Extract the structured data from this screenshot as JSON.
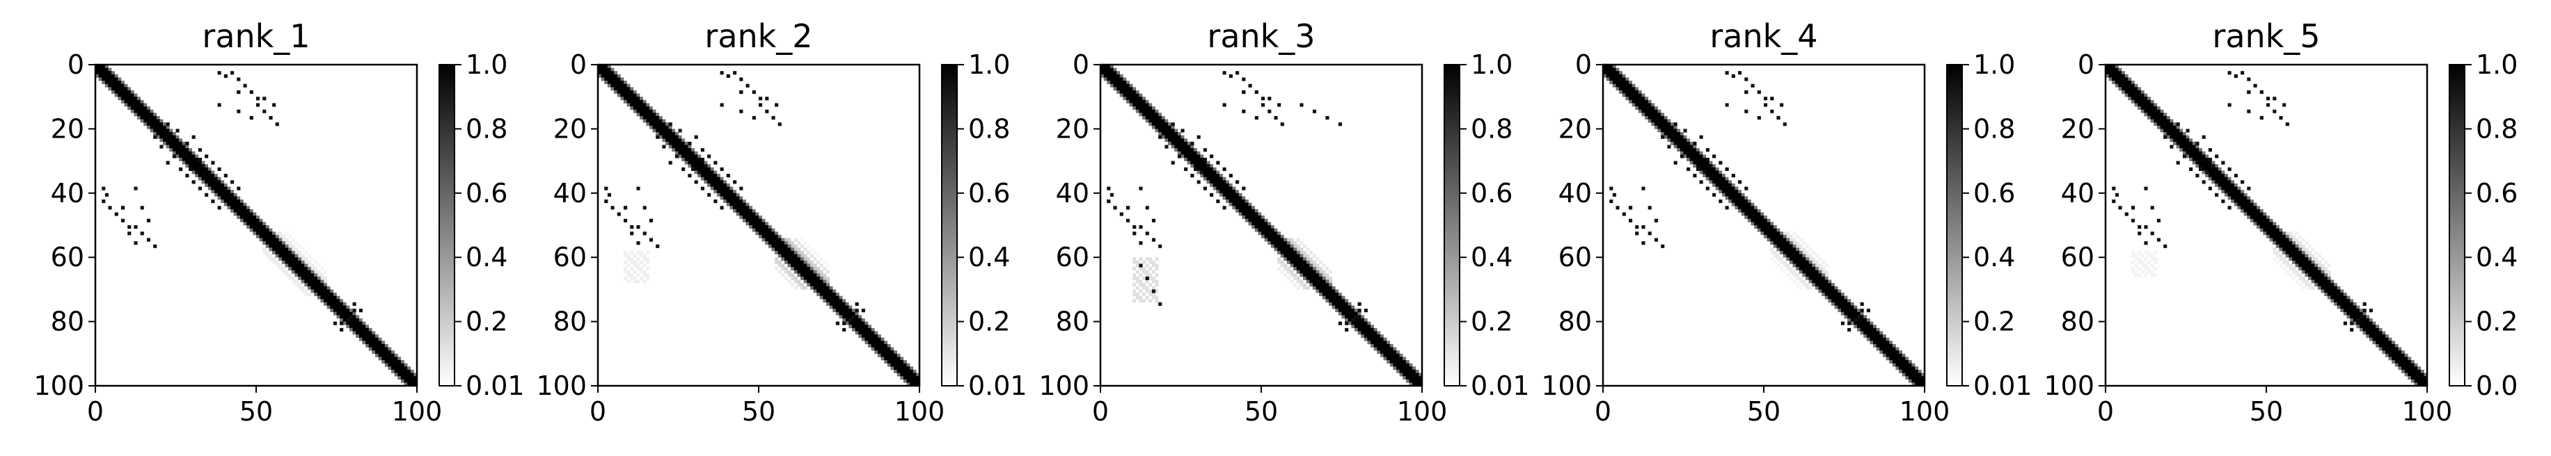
{
  "chart_data": [
    {
      "type": "heatmap",
      "title": "rank_1",
      "x_ticks": [
        "0",
        "50",
        "100"
      ],
      "y_ticks": [
        "0",
        "20",
        "40",
        "60",
        "80",
        "100"
      ],
      "xlim": [
        0,
        100
      ],
      "ylim": [
        100,
        0
      ],
      "colorbar": {
        "ticks": [
          "1.0",
          "0.8",
          "0.6",
          "0.4",
          "0.2",
          "0.01"
        ],
        "range": [
          0.01,
          1.0
        ],
        "colormap": "gray_r"
      },
      "n": 100,
      "diagonal_halfwidth": 3,
      "contacts": [
        [
          2,
          38
        ],
        [
          3,
          40
        ],
        [
          8,
          44
        ],
        [
          10,
          50
        ],
        [
          12,
          55
        ],
        [
          14,
          44
        ],
        [
          16,
          48
        ],
        [
          12,
          38
        ],
        [
          18,
          22
        ],
        [
          20,
          25
        ],
        [
          22,
          30
        ],
        [
          24,
          28
        ],
        [
          26,
          32
        ],
        [
          28,
          34
        ],
        [
          30,
          36
        ],
        [
          32,
          38
        ],
        [
          34,
          40
        ],
        [
          36,
          42
        ],
        [
          38,
          44
        ],
        [
          33,
          31
        ],
        [
          32,
          29
        ],
        [
          42,
          2
        ],
        [
          44,
          4
        ],
        [
          46,
          6
        ],
        [
          48,
          8
        ],
        [
          50,
          12
        ],
        [
          52,
          14
        ],
        [
          54,
          16
        ],
        [
          56,
          18
        ],
        [
          52,
          10
        ],
        [
          44,
          8
        ],
        [
          74,
          80
        ],
        [
          76,
          82
        ],
        [
          78,
          79
        ],
        [
          80,
          76
        ]
      ],
      "diffuse_regions": [
        {
          "x": [
            52,
            72
          ],
          "y": [
            52,
            72
          ],
          "level": 0.15
        }
      ]
    },
    {
      "type": "heatmap",
      "title": "rank_2",
      "x_ticks": [
        "0",
        "50",
        "100"
      ],
      "y_ticks": [
        "0",
        "20",
        "40",
        "60",
        "80",
        "100"
      ],
      "xlim": [
        0,
        100
      ],
      "ylim": [
        100,
        0
      ],
      "colorbar": {
        "ticks": [
          "1.0",
          "0.8",
          "0.6",
          "0.4",
          "0.2",
          "0.01"
        ],
        "range": [
          0.01,
          1.0
        ],
        "colormap": "gray_r"
      },
      "n": 100,
      "diagonal_halfwidth": 3,
      "contacts": [
        [
          2,
          38
        ],
        [
          3,
          40
        ],
        [
          8,
          44
        ],
        [
          10,
          50
        ],
        [
          12,
          55
        ],
        [
          14,
          44
        ],
        [
          16,
          48
        ],
        [
          12,
          38
        ],
        [
          18,
          22
        ],
        [
          20,
          25
        ],
        [
          22,
          30
        ],
        [
          24,
          28
        ],
        [
          26,
          32
        ],
        [
          28,
          34
        ],
        [
          30,
          36
        ],
        [
          32,
          38
        ],
        [
          34,
          40
        ],
        [
          36,
          42
        ],
        [
          38,
          44
        ],
        [
          33,
          31
        ],
        [
          32,
          29
        ],
        [
          42,
          2
        ],
        [
          44,
          4
        ],
        [
          46,
          6
        ],
        [
          48,
          8
        ],
        [
          50,
          12
        ],
        [
          52,
          14
        ],
        [
          54,
          16
        ],
        [
          56,
          18
        ],
        [
          52,
          10
        ],
        [
          44,
          8
        ],
        [
          74,
          80
        ],
        [
          76,
          82
        ],
        [
          78,
          79
        ],
        [
          80,
          76
        ]
      ],
      "diffuse_regions": [
        {
          "x": [
            55,
            72
          ],
          "y": [
            54,
            70
          ],
          "level": 0.35
        },
        {
          "x": [
            8,
            16
          ],
          "y": [
            58,
            68
          ],
          "level": 0.08
        }
      ]
    },
    {
      "type": "heatmap",
      "title": "rank_3",
      "x_ticks": [
        "0",
        "50",
        "100"
      ],
      "y_ticks": [
        "0",
        "20",
        "40",
        "60",
        "80",
        "100"
      ],
      "xlim": [
        0,
        100
      ],
      "ylim": [
        100,
        0
      ],
      "colorbar": {
        "ticks": [
          "1.0",
          "0.8",
          "0.6",
          "0.4",
          "0.2",
          "0.01"
        ],
        "range": [
          0.01,
          1.0
        ],
        "colormap": "gray_r"
      },
      "n": 100,
      "diagonal_halfwidth": 3,
      "contacts": [
        [
          2,
          38
        ],
        [
          3,
          40
        ],
        [
          8,
          44
        ],
        [
          10,
          50
        ],
        [
          12,
          55
        ],
        [
          14,
          44
        ],
        [
          16,
          48
        ],
        [
          12,
          38
        ],
        [
          18,
          22
        ],
        [
          20,
          25
        ],
        [
          22,
          30
        ],
        [
          24,
          28
        ],
        [
          26,
          32
        ],
        [
          28,
          34
        ],
        [
          30,
          36
        ],
        [
          32,
          38
        ],
        [
          34,
          40
        ],
        [
          36,
          42
        ],
        [
          38,
          44
        ],
        [
          33,
          31
        ],
        [
          32,
          29
        ],
        [
          42,
          2
        ],
        [
          44,
          4
        ],
        [
          46,
          6
        ],
        [
          48,
          8
        ],
        [
          50,
          12
        ],
        [
          52,
          14
        ],
        [
          54,
          16
        ],
        [
          56,
          18
        ],
        [
          52,
          10
        ],
        [
          44,
          8
        ],
        [
          74,
          80
        ],
        [
          76,
          82
        ],
        [
          78,
          79
        ],
        [
          80,
          76
        ],
        [
          62,
          12
        ],
        [
          66,
          14
        ],
        [
          70,
          16
        ],
        [
          74,
          18
        ]
      ],
      "diffuse_regions": [
        {
          "x": [
            55,
            72
          ],
          "y": [
            54,
            70
          ],
          "level": 0.3
        },
        {
          "x": [
            10,
            18
          ],
          "y": [
            60,
            74
          ],
          "level": 0.15
        }
      ]
    },
    {
      "type": "heatmap",
      "title": "rank_4",
      "x_ticks": [
        "0",
        "50",
        "100"
      ],
      "y_ticks": [
        "0",
        "20",
        "40",
        "60",
        "80",
        "100"
      ],
      "xlim": [
        0,
        100
      ],
      "ylim": [
        100,
        0
      ],
      "colorbar": {
        "ticks": [
          "1.0",
          "0.8",
          "0.6",
          "0.4",
          "0.2",
          "0.01"
        ],
        "range": [
          0.01,
          1.0
        ],
        "colormap": "gray_r"
      },
      "n": 100,
      "diagonal_halfwidth": 3,
      "contacts": [
        [
          2,
          38
        ],
        [
          3,
          40
        ],
        [
          8,
          44
        ],
        [
          10,
          50
        ],
        [
          12,
          55
        ],
        [
          14,
          44
        ],
        [
          16,
          48
        ],
        [
          12,
          38
        ],
        [
          18,
          22
        ],
        [
          20,
          25
        ],
        [
          22,
          30
        ],
        [
          24,
          28
        ],
        [
          26,
          32
        ],
        [
          28,
          34
        ],
        [
          30,
          36
        ],
        [
          32,
          38
        ],
        [
          34,
          40
        ],
        [
          36,
          42
        ],
        [
          38,
          44
        ],
        [
          33,
          31
        ],
        [
          32,
          29
        ],
        [
          42,
          2
        ],
        [
          44,
          4
        ],
        [
          46,
          6
        ],
        [
          48,
          8
        ],
        [
          50,
          12
        ],
        [
          52,
          14
        ],
        [
          54,
          16
        ],
        [
          56,
          18
        ],
        [
          52,
          10
        ],
        [
          44,
          8
        ],
        [
          74,
          80
        ],
        [
          76,
          82
        ],
        [
          78,
          79
        ],
        [
          80,
          76
        ]
      ],
      "diffuse_regions": [
        {
          "x": [
            52,
            70
          ],
          "y": [
            52,
            70
          ],
          "level": 0.18
        }
      ]
    },
    {
      "type": "heatmap",
      "title": "rank_5",
      "x_ticks": [
        "0",
        "50",
        "100"
      ],
      "y_ticks": [
        "0",
        "20",
        "40",
        "60",
        "80",
        "100"
      ],
      "xlim": [
        0,
        100
      ],
      "ylim": [
        100,
        0
      ],
      "colorbar": {
        "ticks": [
          "1.0",
          "0.8",
          "0.6",
          "0.4",
          "0.2",
          "0.0"
        ],
        "range": [
          0.0,
          1.0
        ],
        "colormap": "gray_r"
      },
      "n": 100,
      "diagonal_halfwidth": 3,
      "contacts": [
        [
          2,
          38
        ],
        [
          3,
          40
        ],
        [
          8,
          44
        ],
        [
          10,
          50
        ],
        [
          12,
          55
        ],
        [
          14,
          44
        ],
        [
          16,
          48
        ],
        [
          12,
          38
        ],
        [
          18,
          22
        ],
        [
          20,
          25
        ],
        [
          22,
          30
        ],
        [
          24,
          28
        ],
        [
          26,
          32
        ],
        [
          28,
          34
        ],
        [
          30,
          36
        ],
        [
          32,
          38
        ],
        [
          34,
          40
        ],
        [
          36,
          42
        ],
        [
          38,
          44
        ],
        [
          33,
          31
        ],
        [
          32,
          29
        ],
        [
          42,
          2
        ],
        [
          44,
          4
        ],
        [
          46,
          6
        ],
        [
          48,
          8
        ],
        [
          50,
          12
        ],
        [
          52,
          14
        ],
        [
          54,
          16
        ],
        [
          56,
          18
        ],
        [
          52,
          10
        ],
        [
          44,
          8
        ],
        [
          74,
          80
        ],
        [
          76,
          82
        ],
        [
          78,
          79
        ],
        [
          80,
          76
        ]
      ],
      "diffuse_regions": [
        {
          "x": [
            52,
            70
          ],
          "y": [
            52,
            70
          ],
          "level": 0.2
        },
        {
          "x": [
            8,
            16
          ],
          "y": [
            58,
            66
          ],
          "level": 0.06
        }
      ]
    }
  ]
}
